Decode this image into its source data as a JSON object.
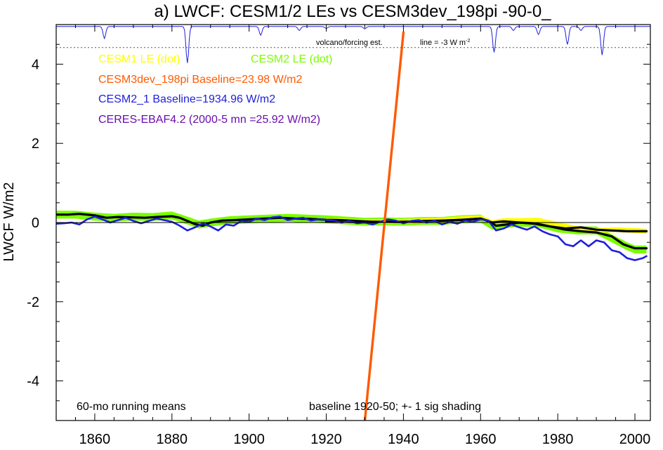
{
  "chart_data": {
    "type": "line",
    "title": "a) LWCF: CESM1/2 LEs vs CESM3dev_198pi -90-0_",
    "ylabel": "LWCF W/m2",
    "xlabel": "",
    "xlim": [
      1850,
      2004
    ],
    "ylim": [
      -5,
      5
    ],
    "xticks": [
      1860,
      1880,
      1900,
      1920,
      1940,
      1960,
      1980,
      2000
    ],
    "yticks": [
      -4,
      -2,
      0,
      2,
      4
    ],
    "xtick_labels": [
      "1860",
      "1880",
      "1900",
      "1920",
      "1940",
      "1960",
      "1980",
      "2000"
    ],
    "ytick_labels": [
      "-4",
      "-2",
      "0",
      "2",
      "4"
    ],
    "grid": false,
    "zero_line": true,
    "legend": [
      {
        "label": "CESM1 LE (dot)",
        "color": "#ffff00"
      },
      {
        "label": "CESM2 LE (dot)",
        "color": "#7cfc00"
      },
      {
        "label": "CESM3dev_198pi Baseline=23.98 W/m2",
        "color": "#ff5a00"
      },
      {
        "label": "CESM2_1 Baseline=1934.96 W/m2",
        "color": "#1e1edc"
      },
      {
        "label": "CERES-EBAF4.2 (2000-5 mn =25.92 W/m2)",
        "color": "#6a0dad"
      }
    ],
    "annotations": {
      "volcano": "volcano/forcing est.",
      "line_note": "line = -3 W m",
      "line_note_sup": "-2",
      "bottom_left": "60-mo running means",
      "bottom_right": "baseline 1920-50; +- 1 sig shading"
    },
    "volcano_reference_y": 4.42,
    "volcano_dips": [
      {
        "year": 1862.5,
        "depth": 0.3
      },
      {
        "year": 1884.0,
        "depth": 0.92
      },
      {
        "year": 1903.0,
        "depth": 0.22
      },
      {
        "year": 1913.0,
        "depth": 0.1
      },
      {
        "year": 1920.0,
        "depth": 0.05
      },
      {
        "year": 1930.0,
        "depth": 0.06
      },
      {
        "year": 1963.5,
        "depth": 0.65
      },
      {
        "year": 1968.5,
        "depth": 0.1
      },
      {
        "year": 1975.0,
        "depth": 0.2
      },
      {
        "year": 1982.5,
        "depth": 0.45
      },
      {
        "year": 1986.0,
        "depth": 0.1
      },
      {
        "year": 1991.5,
        "depth": 0.72
      }
    ],
    "series": [
      {
        "name": "CESM2 LE (dot)",
        "kind": "band",
        "color": "#7cfc00",
        "x": [
          1850,
          1855,
          1860,
          1865,
          1870,
          1875,
          1880,
          1884,
          1887,
          1890,
          1895,
          1900,
          1905,
          1910,
          1915,
          1920,
          1925,
          1930,
          1935,
          1940,
          1945,
          1950,
          1955,
          1960,
          1963,
          1966,
          1970,
          1975,
          1980,
          1985,
          1990,
          1995,
          1998,
          2000,
          2003
        ],
        "y": [
          0.2,
          0.2,
          0.15,
          0.12,
          0.15,
          0.14,
          0.18,
          0.05,
          -0.05,
          0.0,
          0.06,
          0.08,
          0.1,
          0.12,
          0.1,
          0.08,
          0.05,
          0.02,
          0.03,
          0.02,
          0.04,
          0.04,
          0.08,
          0.1,
          -0.08,
          -0.05,
          0.0,
          -0.02,
          -0.15,
          -0.2,
          -0.2,
          -0.45,
          -0.6,
          -0.68,
          -0.68
        ],
        "spread": 0.1
      },
      {
        "name": "CESM1 LE (dot)",
        "kind": "band",
        "color": "#ffff00",
        "x": [
          1920,
          1925,
          1930,
          1935,
          1940,
          1945,
          1950,
          1955,
          1960,
          1963,
          1966,
          1970,
          1975,
          1980,
          1985,
          1990,
          1995,
          2000,
          2003
        ],
        "y": [
          0.05,
          0.04,
          0.02,
          0.03,
          0.03,
          0.05,
          0.06,
          0.1,
          0.12,
          0.0,
          0.05,
          0.05,
          0.06,
          -0.05,
          -0.15,
          -0.2,
          -0.18,
          -0.2,
          -0.22
        ],
        "spread": 0.06
      },
      {
        "name": "CESM2 LE (dot) mean",
        "kind": "line",
        "color": "#000000",
        "width": 3.2,
        "x": [
          1850,
          1853,
          1856,
          1860,
          1863,
          1866,
          1870,
          1873,
          1876,
          1880,
          1882,
          1884,
          1886,
          1888,
          1890,
          1893,
          1896,
          1900,
          1904,
          1908,
          1912,
          1916,
          1920,
          1924,
          1928,
          1932,
          1936,
          1940,
          1944,
          1948,
          1952,
          1956,
          1960,
          1962,
          1964,
          1966,
          1970,
          1974,
          1978,
          1982,
          1986,
          1990,
          1994,
          1997,
          2000,
          2003
        ],
        "y": [
          0.2,
          0.2,
          0.22,
          0.18,
          0.12,
          0.14,
          0.13,
          0.12,
          0.14,
          0.16,
          0.12,
          0.04,
          -0.04,
          -0.08,
          0.0,
          0.05,
          0.06,
          0.08,
          0.1,
          0.12,
          0.1,
          0.09,
          0.07,
          0.06,
          0.04,
          0.02,
          0.02,
          0.02,
          0.03,
          0.04,
          0.05,
          0.07,
          0.1,
          0.04,
          -0.08,
          -0.06,
          0.0,
          -0.02,
          -0.1,
          -0.18,
          -0.22,
          -0.25,
          -0.35,
          -0.55,
          -0.65,
          -0.65
        ]
      },
      {
        "name": "CESM1 LE (dot) mean",
        "kind": "line",
        "color": "#000000",
        "width": 3.2,
        "x": [
          1920,
          1925,
          1930,
          1935,
          1940,
          1945,
          1950,
          1955,
          1960,
          1963,
          1966,
          1970,
          1974,
          1978,
          1982,
          1986,
          1990,
          1994,
          1998,
          2003
        ],
        "y": [
          0.03,
          0.02,
          0.0,
          0.02,
          0.01,
          0.04,
          0.05,
          0.07,
          0.1,
          0.0,
          0.03,
          0.0,
          -0.03,
          -0.1,
          -0.15,
          -0.12,
          -0.18,
          -0.2,
          -0.22,
          -0.22
        ]
      },
      {
        "name": "CESM2_1 Baseline=1934.96 W/m2",
        "kind": "line",
        "color": "#1e1edc",
        "width": 2.6,
        "x": [
          1850,
          1852,
          1854,
          1856,
          1858,
          1860,
          1862,
          1864,
          1866,
          1868,
          1870,
          1872,
          1874,
          1876,
          1878,
          1880,
          1882,
          1884,
          1886,
          1888,
          1890,
          1892,
          1894,
          1896,
          1898,
          1900,
          1902,
          1904,
          1906,
          1908,
          1910,
          1912,
          1914,
          1916,
          1918,
          1920,
          1922,
          1924,
          1926,
          1928,
          1930,
          1932,
          1934,
          1936,
          1938,
          1940,
          1942,
          1944,
          1946,
          1948,
          1950,
          1952,
          1954,
          1956,
          1958,
          1960,
          1962,
          1964,
          1966,
          1968,
          1970,
          1972,
          1974,
          1976,
          1978,
          1980,
          1982,
          1984,
          1986,
          1988,
          1990,
          1992,
          1994,
          1996,
          1998,
          2000,
          2002,
          2003
        ],
        "y": [
          -0.03,
          -0.02,
          0.0,
          -0.05,
          0.08,
          0.15,
          0.08,
          0.0,
          0.06,
          0.12,
          0.04,
          -0.02,
          0.04,
          0.1,
          0.06,
          0.02,
          -0.08,
          -0.2,
          -0.12,
          -0.02,
          -0.1,
          -0.2,
          -0.05,
          -0.08,
          0.04,
          0.02,
          0.1,
          0.06,
          0.13,
          0.15,
          0.06,
          0.1,
          0.12,
          0.05,
          0.08,
          0.07,
          0.05,
          0.0,
          0.04,
          -0.02,
          0.0,
          -0.05,
          0.02,
          0.08,
          0.05,
          -0.02,
          0.04,
          0.06,
          0.0,
          0.05,
          -0.05,
          0.02,
          -0.03,
          0.05,
          0.02,
          0.08,
          0.05,
          -0.2,
          -0.15,
          -0.05,
          -0.12,
          -0.18,
          -0.1,
          -0.22,
          -0.3,
          -0.35,
          -0.55,
          -0.6,
          -0.45,
          -0.6,
          -0.45,
          -0.5,
          -0.7,
          -0.75,
          -0.9,
          -0.95,
          -0.9,
          -0.85
        ]
      },
      {
        "name": "CESM3dev_198pi Baseline=23.98 W/m2",
        "kind": "line",
        "color": "#ff5a00",
        "width": 3.4,
        "x": [
          1930,
          1940
        ],
        "y": [
          -5.0,
          4.8
        ]
      }
    ]
  }
}
